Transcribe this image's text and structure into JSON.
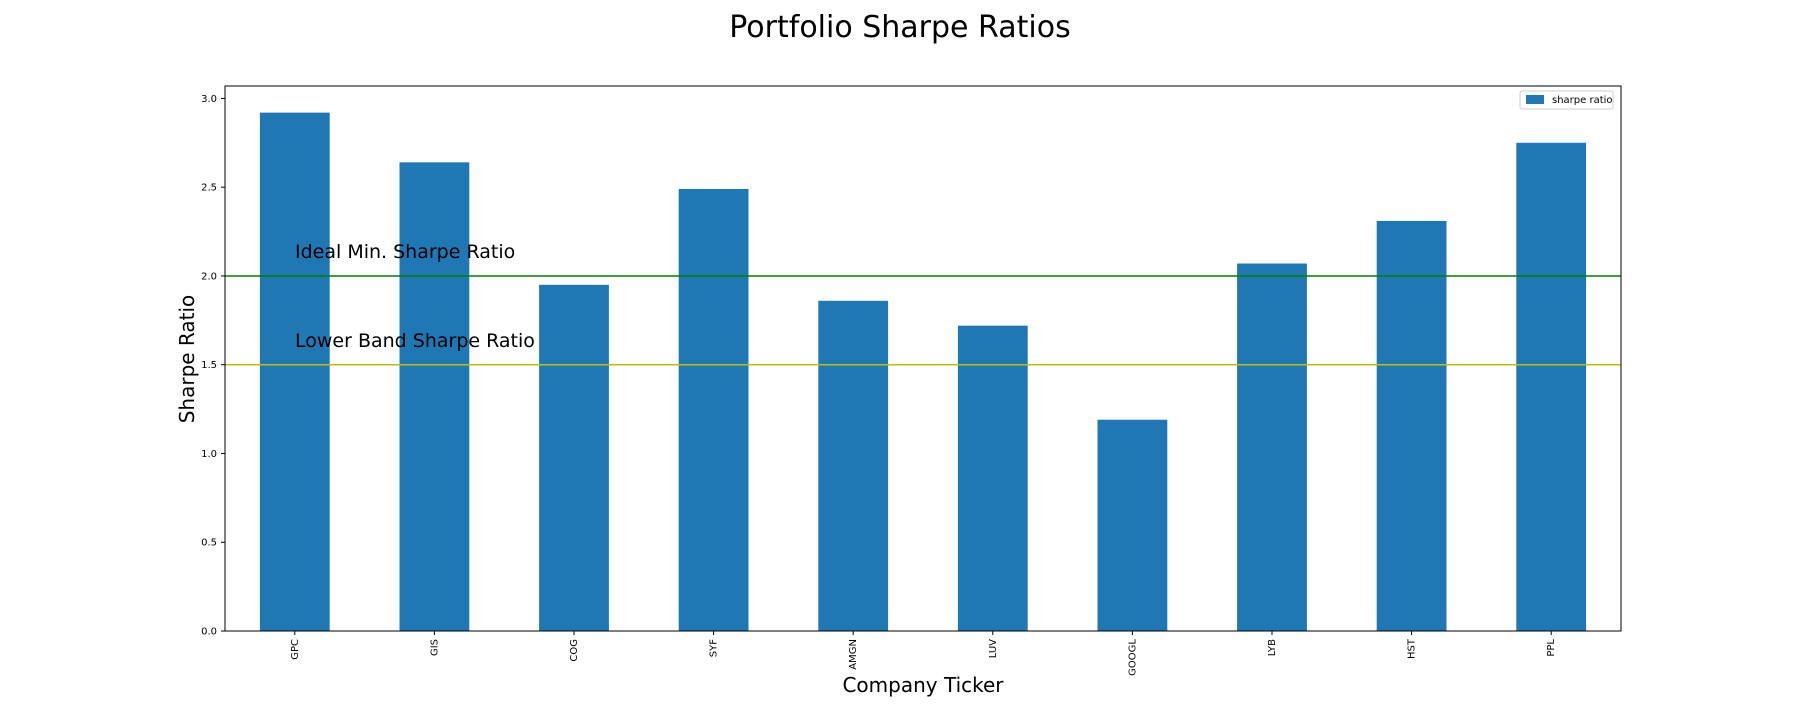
{
  "chart_data": {
    "type": "bar",
    "title": "Portfolio Sharpe Ratios",
    "xlabel": "Company Ticker",
    "ylabel": "Sharpe Ratio",
    "categories": [
      "GPC",
      "GIS",
      "COG",
      "SYF",
      "AMGN",
      "LUV",
      "GOOGL",
      "LYB",
      "HST",
      "PPL"
    ],
    "series": [
      {
        "name": "sharpe ratio",
        "values": [
          2.92,
          2.64,
          1.95,
          2.49,
          1.86,
          1.72,
          1.19,
          2.07,
          2.31,
          2.75
        ],
        "color": "#1f77b4"
      }
    ],
    "ylim": [
      0,
      3.07
    ],
    "yticks": [
      0.0,
      0.5,
      1.0,
      1.5,
      2.0,
      2.5,
      3.0
    ],
    "ytick_labels": [
      "0.0",
      "0.5",
      "1.0",
      "1.5",
      "2.0",
      "2.5",
      "3.0"
    ],
    "reference_lines": [
      {
        "y": 2.0,
        "label": "Ideal Min. Sharpe Ratio",
        "color": "#008000"
      },
      {
        "y": 1.5,
        "label": "Lower Band Sharpe Ratio",
        "color": "#bfbf00"
      }
    ],
    "legend_position": "top-right",
    "grid": false
  }
}
